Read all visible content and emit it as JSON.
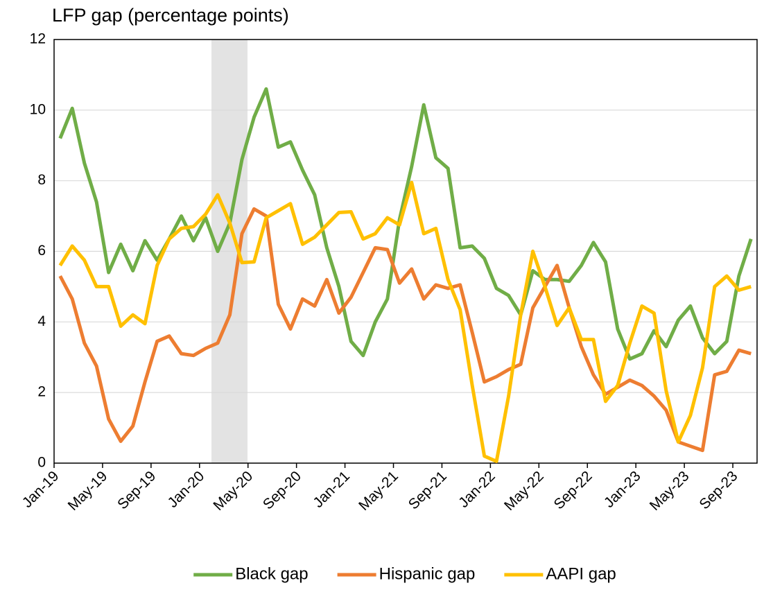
{
  "chart_data": {
    "type": "line",
    "title": "LFP gap (percentage points)",
    "categories": [
      "Jan-19",
      null,
      null,
      null,
      "May-19",
      null,
      null,
      null,
      "Sep-19",
      null,
      null,
      null,
      "Jan-20",
      null,
      null,
      null,
      "May-20",
      null,
      null,
      null,
      "Sep-20",
      null,
      null,
      null,
      "Jan-21",
      null,
      null,
      null,
      "May-21",
      null,
      null,
      null,
      "Sep-21",
      null,
      null,
      null,
      "Jan-22",
      null,
      null,
      null,
      "May-22",
      null,
      null,
      null,
      "Sep-22",
      null,
      null,
      null,
      "Jan-23",
      null,
      null,
      null,
      "May-23",
      null,
      null,
      null,
      "Sep-23",
      null
    ],
    "series": [
      {
        "name": "Black gap",
        "color": "#70ad47",
        "values": [
          9.2,
          10.05,
          8.5,
          7.4,
          5.4,
          6.2,
          5.45,
          6.3,
          5.75,
          6.35,
          7.0,
          6.3,
          6.95,
          6.0,
          6.8,
          8.6,
          9.8,
          10.6,
          8.95,
          9.1,
          8.3,
          7.6,
          6.1,
          5.0,
          3.45,
          3.05,
          4.0,
          4.65,
          6.9,
          8.4,
          10.15,
          8.65,
          8.35,
          6.1,
          6.15,
          5.8,
          4.95,
          4.75,
          4.2,
          5.45,
          5.2,
          5.2,
          5.15,
          5.6,
          6.25,
          5.7,
          3.8,
          2.95,
          3.1,
          3.75,
          3.3,
          4.05,
          4.45,
          3.55,
          3.1,
          3.45,
          5.3,
          6.35
        ]
      },
      {
        "name": "Hispanic gap",
        "color": "#ed7d31",
        "values": [
          5.3,
          4.65,
          3.4,
          2.75,
          1.25,
          0.62,
          1.05,
          2.3,
          3.45,
          3.6,
          3.1,
          3.05,
          3.25,
          3.4,
          4.2,
          6.5,
          7.2,
          7.0,
          4.5,
          3.8,
          4.65,
          4.45,
          5.2,
          4.25,
          4.7,
          5.4,
          6.1,
          6.05,
          5.1,
          5.5,
          4.65,
          5.05,
          4.95,
          5.05,
          3.7,
          2.3,
          2.45,
          2.65,
          2.8,
          4.4,
          5.0,
          5.6,
          4.4,
          3.3,
          2.5,
          1.95,
          2.15,
          2.35,
          2.2,
          1.9,
          1.5,
          0.6,
          0.48,
          0.36,
          2.5,
          2.6,
          3.2,
          3.1
        ]
      },
      {
        "name": "AAPI gap",
        "color": "#ffc000",
        "values": [
          5.6,
          6.15,
          5.75,
          5.0,
          5.0,
          3.88,
          4.2,
          3.95,
          5.6,
          6.35,
          6.65,
          6.7,
          7.05,
          7.6,
          6.8,
          5.68,
          5.7,
          6.95,
          7.15,
          7.35,
          6.2,
          6.4,
          6.75,
          7.1,
          7.12,
          6.35,
          6.5,
          6.95,
          6.75,
          7.95,
          6.5,
          6.65,
          5.2,
          4.35,
          2.2,
          0.2,
          0.05,
          1.9,
          4.2,
          6.0,
          5.0,
          3.9,
          4.4,
          3.5,
          3.5,
          1.75,
          2.2,
          3.4,
          4.45,
          4.25,
          2.05,
          0.6,
          1.35,
          2.7,
          5.0,
          5.3,
          4.9,
          5.0
        ]
      }
    ],
    "ylim": [
      0,
      12
    ],
    "yticks": [
      0,
      2,
      4,
      6,
      8,
      10,
      12
    ],
    "grid": true
  }
}
